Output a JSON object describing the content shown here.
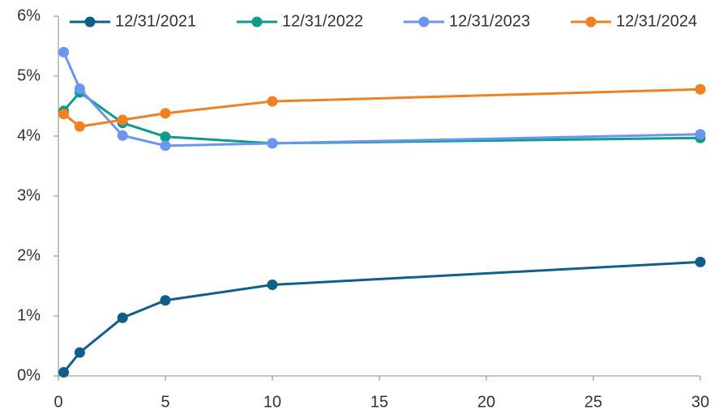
{
  "chart_data": {
    "type": "line",
    "x": [
      0.25,
      1,
      3,
      5,
      10,
      30
    ],
    "series": [
      {
        "name": "12/31/2021",
        "color": "#0e5f8a",
        "values": [
          0.06,
          0.39,
          0.97,
          1.26,
          1.52,
          1.9
        ]
      },
      {
        "name": "12/31/2022",
        "color": "#0f9b8e",
        "values": [
          4.42,
          4.73,
          4.22,
          3.99,
          3.88,
          3.97
        ]
      },
      {
        "name": "12/31/2023",
        "color": "#6a96f0",
        "values": [
          5.4,
          4.79,
          4.01,
          3.84,
          3.88,
          4.03
        ]
      },
      {
        "name": "12/31/2024",
        "color": "#f08122",
        "values": [
          4.37,
          4.16,
          4.27,
          4.38,
          4.58,
          4.78
        ]
      }
    ],
    "xlim": [
      0,
      30
    ],
    "xticks": [
      0,
      5,
      10,
      15,
      20,
      25,
      30
    ],
    "ylim": [
      0,
      6
    ],
    "yticks": [
      {
        "value": 0,
        "label": "0%"
      },
      {
        "value": 1,
        "label": "1%"
      },
      {
        "value": 2,
        "label": "2%"
      },
      {
        "value": 3,
        "label": "3%"
      },
      {
        "value": 4,
        "label": "4%"
      },
      {
        "value": 5,
        "label": "5%"
      },
      {
        "value": 6,
        "label": "6%"
      }
    ],
    "grid": false,
    "legend": "top"
  }
}
